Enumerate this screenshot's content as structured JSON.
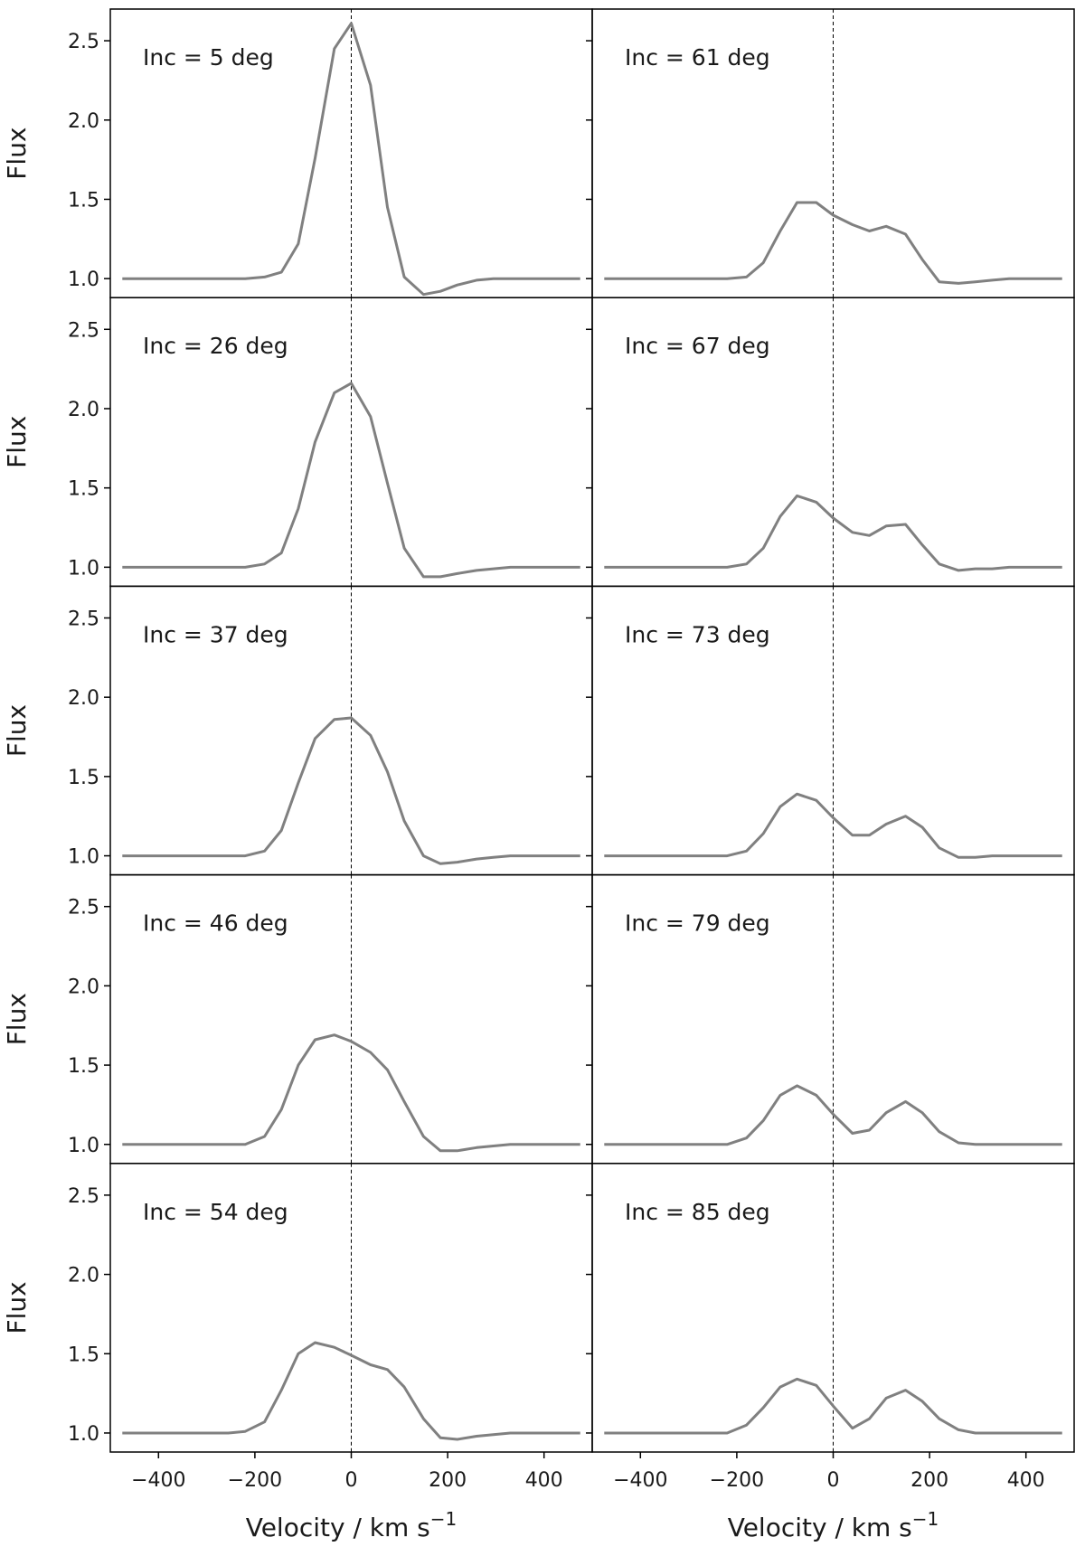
{
  "chart_data": {
    "type": "line",
    "layout": "grid",
    "rows": 5,
    "cols": 2,
    "xlabel": "Velocity / km s",
    "xlabel_superscript": "−1",
    "ylabel": "Flux",
    "xlim": [
      -500,
      500
    ],
    "ylim": [
      0.88,
      2.7
    ],
    "xticks": [
      -400,
      -200,
      0,
      200,
      400
    ],
    "xtick_labels": [
      "−400",
      "−200",
      "0",
      "200",
      "400"
    ],
    "yticks": [
      1.0,
      1.5,
      2.0,
      2.5
    ],
    "ytick_labels": [
      "1.0",
      "1.5",
      "2.0",
      "2.5"
    ],
    "zero_velocity_line": 0,
    "line_color": "#808080",
    "x": [
      -475,
      -440,
      -400,
      -360,
      -320,
      -290,
      -255,
      -220,
      -180,
      -145,
      -110,
      -75,
      -35,
      0,
      40,
      75,
      110,
      150,
      185,
      220,
      260,
      295,
      330,
      365,
      400,
      440,
      475
    ],
    "panels": [
      {
        "label": "Inc = 5 deg",
        "values": [
          1.0,
          1.0,
          1.0,
          1.0,
          1.0,
          1.0,
          1.0,
          1.0,
          1.01,
          1.04,
          1.22,
          1.76,
          2.45,
          2.61,
          2.22,
          1.45,
          1.01,
          0.9,
          0.92,
          0.96,
          0.99,
          1.0,
          1.0,
          1.0,
          1.0,
          1.0,
          1.0
        ]
      },
      {
        "label": "Inc = 26 deg",
        "values": [
          1.0,
          1.0,
          1.0,
          1.0,
          1.0,
          1.0,
          1.0,
          1.0,
          1.02,
          1.09,
          1.37,
          1.79,
          2.1,
          2.16,
          1.95,
          1.53,
          1.12,
          0.94,
          0.94,
          0.96,
          0.98,
          0.99,
          1.0,
          1.0,
          1.0,
          1.0,
          1.0
        ]
      },
      {
        "label": "Inc = 37 deg",
        "values": [
          1.0,
          1.0,
          1.0,
          1.0,
          1.0,
          1.0,
          1.0,
          1.0,
          1.03,
          1.16,
          1.46,
          1.74,
          1.86,
          1.87,
          1.76,
          1.53,
          1.22,
          1.0,
          0.95,
          0.96,
          0.98,
          0.99,
          1.0,
          1.0,
          1.0,
          1.0,
          1.0
        ]
      },
      {
        "label": "Inc = 46 deg",
        "values": [
          1.0,
          1.0,
          1.0,
          1.0,
          1.0,
          1.0,
          1.0,
          1.0,
          1.05,
          1.22,
          1.5,
          1.66,
          1.69,
          1.65,
          1.58,
          1.47,
          1.27,
          1.05,
          0.96,
          0.96,
          0.98,
          0.99,
          1.0,
          1.0,
          1.0,
          1.0,
          1.0
        ]
      },
      {
        "label": "Inc = 54 deg",
        "values": [
          1.0,
          1.0,
          1.0,
          1.0,
          1.0,
          1.0,
          1.0,
          1.01,
          1.07,
          1.27,
          1.5,
          1.57,
          1.54,
          1.49,
          1.43,
          1.4,
          1.29,
          1.09,
          0.97,
          0.96,
          0.98,
          0.99,
          1.0,
          1.0,
          1.0,
          1.0,
          1.0
        ]
      },
      {
        "label": "Inc = 61 deg",
        "values": [
          1.0,
          1.0,
          1.0,
          1.0,
          1.0,
          1.0,
          1.0,
          1.0,
          1.01,
          1.1,
          1.3,
          1.48,
          1.48,
          1.4,
          1.34,
          1.3,
          1.33,
          1.28,
          1.12,
          0.98,
          0.97,
          0.98,
          0.99,
          1.0,
          1.0,
          1.0,
          1.0
        ]
      },
      {
        "label": "Inc = 67 deg",
        "values": [
          1.0,
          1.0,
          1.0,
          1.0,
          1.0,
          1.0,
          1.0,
          1.0,
          1.02,
          1.12,
          1.32,
          1.45,
          1.41,
          1.31,
          1.22,
          1.2,
          1.26,
          1.27,
          1.14,
          1.02,
          0.98,
          0.99,
          0.99,
          1.0,
          1.0,
          1.0,
          1.0
        ]
      },
      {
        "label": "Inc = 73 deg",
        "values": [
          1.0,
          1.0,
          1.0,
          1.0,
          1.0,
          1.0,
          1.0,
          1.0,
          1.03,
          1.14,
          1.31,
          1.39,
          1.35,
          1.24,
          1.13,
          1.13,
          1.2,
          1.25,
          1.18,
          1.05,
          0.99,
          0.99,
          1.0,
          1.0,
          1.0,
          1.0,
          1.0
        ]
      },
      {
        "label": "Inc = 79 deg",
        "values": [
          1.0,
          1.0,
          1.0,
          1.0,
          1.0,
          1.0,
          1.0,
          1.0,
          1.04,
          1.15,
          1.31,
          1.37,
          1.31,
          1.19,
          1.07,
          1.09,
          1.2,
          1.27,
          1.2,
          1.08,
          1.01,
          1.0,
          1.0,
          1.0,
          1.0,
          1.0,
          1.0
        ]
      },
      {
        "label": "Inc = 85 deg",
        "values": [
          1.0,
          1.0,
          1.0,
          1.0,
          1.0,
          1.0,
          1.0,
          1.0,
          1.05,
          1.16,
          1.29,
          1.34,
          1.3,
          1.17,
          1.03,
          1.09,
          1.22,
          1.27,
          1.2,
          1.09,
          1.02,
          1.0,
          1.0,
          1.0,
          1.0,
          1.0,
          1.0
        ]
      }
    ]
  }
}
